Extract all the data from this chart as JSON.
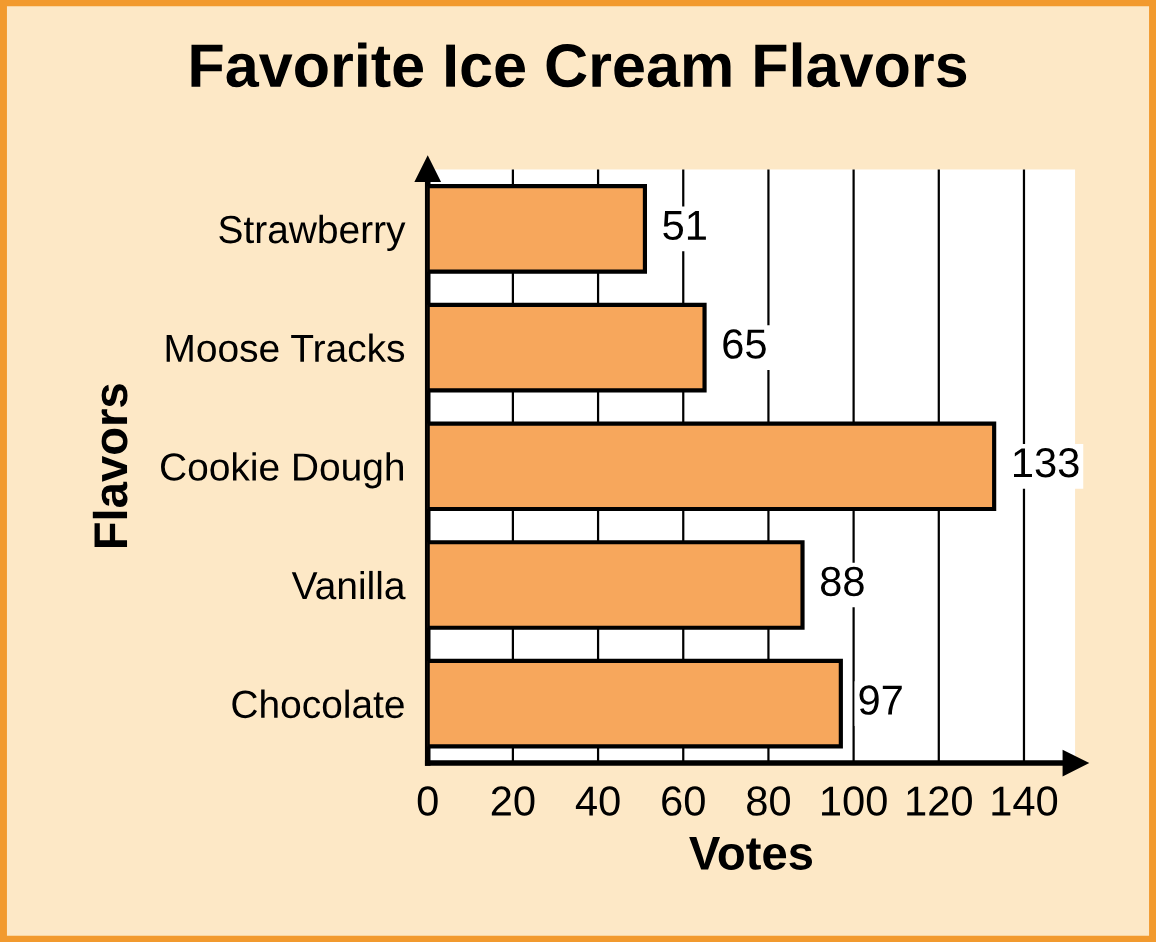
{
  "chart_data": {
    "type": "bar",
    "orientation": "horizontal",
    "title": "Favorite Ice Cream Flavors",
    "xlabel": "Votes",
    "ylabel": "Flavors",
    "categories": [
      "Strawberry",
      "Moose Tracks",
      "Cookie Dough",
      "Vanilla",
      "Chocolate"
    ],
    "values": [
      51,
      65,
      133,
      88,
      97
    ],
    "color": "#f7a75c",
    "xlim": [
      0,
      152
    ],
    "xticks": [
      0,
      20,
      40,
      60,
      80,
      100,
      120,
      140
    ],
    "grid": "x",
    "data_labels": true
  }
}
